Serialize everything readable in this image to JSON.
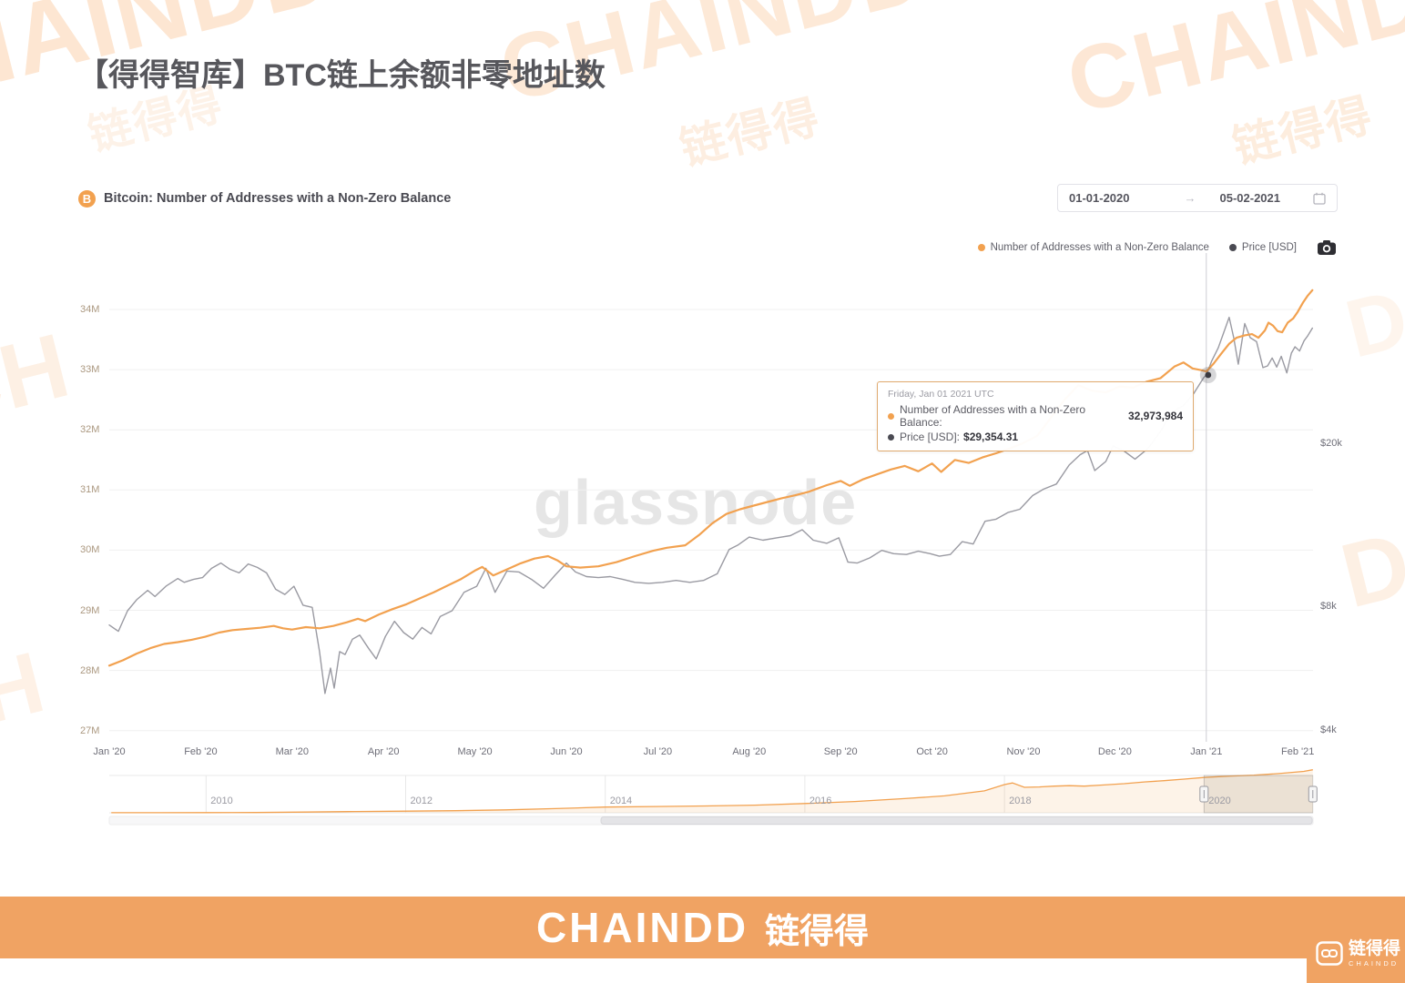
{
  "page": {
    "title": "【得得智库】BTC链上余额非零地址数"
  },
  "colors": {
    "accent_orange": "#F2A14F",
    "price_gray": "#9A9AA2",
    "dark_dot": "#4A4A52",
    "footer_orange": "#F0A363",
    "watermark_orange": "rgba(244,163,90,0.30)",
    "grid": "#f0f0f0"
  },
  "watermark": {
    "latin": "CHAINDD",
    "cjk": "链得得",
    "fragment_ch": "CH",
    "fragment_h": "H",
    "fragment_dd": "DD",
    "fragment_d": "D"
  },
  "chart_header": {
    "title": "Bitcoin: Number of Addresses with a Non-Zero Balance",
    "coin_symbol": "B"
  },
  "date_range": {
    "start": "01-01-2020",
    "arrow": "→",
    "end": "05-02-2021"
  },
  "legend": [
    {
      "label": "Number of Addresses with a Non-Zero Balance"
    },
    {
      "label": "Price [USD]"
    }
  ],
  "center_watermark": "glassnode",
  "tooltip": {
    "date": "Friday, Jan 01 2021 UTC",
    "rows": [
      {
        "label": "Number of Addresses with a Non-Zero Balance:",
        "value": "32,973,984"
      },
      {
        "label": "Price [USD]:",
        "value": "$29,354.31"
      }
    ]
  },
  "footer": {
    "brand_latin": "CHAINDD",
    "brand_cjk": "链得得"
  },
  "corner_logo": {
    "cjk": "链得得",
    "latin": "CHAINDD"
  },
  "chart_data": {
    "type": "line",
    "title": "Bitcoin: Number of Addresses with a Non-Zero Balance",
    "legend_position": "top-right",
    "grid": "horizontal-only",
    "x_axis": {
      "ticks": [
        "Jan '20",
        "Feb '20",
        "Mar '20",
        "Apr '20",
        "May '20",
        "Jun '20",
        "Jul '20",
        "Aug '20",
        "Sep '20",
        "Oct '20",
        "Nov '20",
        "Dec '20",
        "Jan '21",
        "Feb '21"
      ]
    },
    "y_axis_left": {
      "unit": "M addresses",
      "scale": "linear",
      "ticks": [
        34,
        33,
        32,
        31,
        30,
        29,
        28,
        27
      ],
      "suffix": "M"
    },
    "y_axis_right": {
      "unit": "USD",
      "scale": "log",
      "ticks": [
        {
          "label": "$20k",
          "value": 20000
        },
        {
          "label": "$8k",
          "value": 8000
        },
        {
          "label": "$4k",
          "value": 4000
        }
      ]
    },
    "crosshair": {
      "x_month": 12.0,
      "marker_price": 29354.31
    },
    "series": [
      {
        "name": "Number of Addresses with a Non-Zero Balance",
        "axis": "left",
        "unit": "millions",
        "points": [
          [
            0,
            28.08
          ],
          [
            0.15,
            28.17
          ],
          [
            0.3,
            28.28
          ],
          [
            0.45,
            28.37
          ],
          [
            0.6,
            28.44
          ],
          [
            0.75,
            28.47
          ],
          [
            0.9,
            28.51
          ],
          [
            1.05,
            28.56
          ],
          [
            1.2,
            28.63
          ],
          [
            1.35,
            28.67
          ],
          [
            1.5,
            28.69
          ],
          [
            1.65,
            28.71
          ],
          [
            1.8,
            28.74
          ],
          [
            1.9,
            28.7
          ],
          [
            2.0,
            28.68
          ],
          [
            2.15,
            28.72
          ],
          [
            2.3,
            28.7
          ],
          [
            2.45,
            28.74
          ],
          [
            2.6,
            28.8
          ],
          [
            2.72,
            28.86
          ],
          [
            2.8,
            28.82
          ],
          [
            2.95,
            28.93
          ],
          [
            3.1,
            29.02
          ],
          [
            3.25,
            29.1
          ],
          [
            3.4,
            29.2
          ],
          [
            3.55,
            29.3
          ],
          [
            3.7,
            29.41
          ],
          [
            3.85,
            29.52
          ],
          [
            4.0,
            29.66
          ],
          [
            4.08,
            29.72
          ],
          [
            4.2,
            29.58
          ],
          [
            4.35,
            29.68
          ],
          [
            4.5,
            29.78
          ],
          [
            4.65,
            29.86
          ],
          [
            4.8,
            29.9
          ],
          [
            4.9,
            29.83
          ],
          [
            5.0,
            29.73
          ],
          [
            5.15,
            29.71
          ],
          [
            5.35,
            29.73
          ],
          [
            5.55,
            29.8
          ],
          [
            5.75,
            29.9
          ],
          [
            5.95,
            29.99
          ],
          [
            6.1,
            30.04
          ],
          [
            6.3,
            30.08
          ],
          [
            6.45,
            30.25
          ],
          [
            6.6,
            30.45
          ],
          [
            6.75,
            30.6
          ],
          [
            6.9,
            30.68
          ],
          [
            7.05,
            30.74
          ],
          [
            7.2,
            30.8
          ],
          [
            7.35,
            30.86
          ],
          [
            7.5,
            30.91
          ],
          [
            7.65,
            30.97
          ],
          [
            7.85,
            31.08
          ],
          [
            8.0,
            31.15
          ],
          [
            8.1,
            31.07
          ],
          [
            8.25,
            31.18
          ],
          [
            8.4,
            31.26
          ],
          [
            8.55,
            31.34
          ],
          [
            8.7,
            31.4
          ],
          [
            8.85,
            31.31
          ],
          [
            9.0,
            31.44
          ],
          [
            9.1,
            31.3
          ],
          [
            9.25,
            31.5
          ],
          [
            9.4,
            31.45
          ],
          [
            9.55,
            31.54
          ],
          [
            9.7,
            31.61
          ],
          [
            9.85,
            31.69
          ],
          [
            10.0,
            31.78
          ],
          [
            10.15,
            31.9
          ],
          [
            10.3,
            32.2
          ],
          [
            10.45,
            32.5
          ],
          [
            10.6,
            32.74
          ],
          [
            10.75,
            32.65
          ],
          [
            10.9,
            32.62
          ],
          [
            11.05,
            32.72
          ],
          [
            11.2,
            32.7
          ],
          [
            11.35,
            32.8
          ],
          [
            11.5,
            32.86
          ],
          [
            11.65,
            33.05
          ],
          [
            11.75,
            33.12
          ],
          [
            11.85,
            33.02
          ],
          [
            11.95,
            32.99
          ],
          [
            12.0,
            32.97
          ],
          [
            12.08,
            33.1
          ],
          [
            12.16,
            33.26
          ],
          [
            12.25,
            33.43
          ],
          [
            12.33,
            33.53
          ],
          [
            12.42,
            33.57
          ],
          [
            12.5,
            33.59
          ],
          [
            12.57,
            33.53
          ],
          [
            12.64,
            33.65
          ],
          [
            12.68,
            33.78
          ],
          [
            12.73,
            33.73
          ],
          [
            12.78,
            33.64
          ],
          [
            12.83,
            33.62
          ],
          [
            12.89,
            33.78
          ],
          [
            12.95,
            33.85
          ],
          [
            13.0,
            33.96
          ],
          [
            13.06,
            34.12
          ],
          [
            13.11,
            34.23
          ],
          [
            13.16,
            34.32
          ]
        ]
      },
      {
        "name": "Price [USD]",
        "axis": "right",
        "unit": "USD",
        "points": [
          [
            0,
            7200
          ],
          [
            0.1,
            6950
          ],
          [
            0.2,
            7800
          ],
          [
            0.3,
            8300
          ],
          [
            0.42,
            8750
          ],
          [
            0.5,
            8450
          ],
          [
            0.62,
            8950
          ],
          [
            0.75,
            9350
          ],
          [
            0.82,
            9150
          ],
          [
            0.92,
            9300
          ],
          [
            1.02,
            9400
          ],
          [
            1.12,
            9900
          ],
          [
            1.22,
            10200
          ],
          [
            1.32,
            9850
          ],
          [
            1.42,
            9650
          ],
          [
            1.52,
            10150
          ],
          [
            1.62,
            9950
          ],
          [
            1.72,
            9650
          ],
          [
            1.82,
            8800
          ],
          [
            1.92,
            8550
          ],
          [
            2.02,
            8950
          ],
          [
            2.12,
            8050
          ],
          [
            2.22,
            7950
          ],
          [
            2.3,
            6200
          ],
          [
            2.36,
            4900
          ],
          [
            2.42,
            5650
          ],
          [
            2.46,
            5050
          ],
          [
            2.52,
            6200
          ],
          [
            2.58,
            6100
          ],
          [
            2.66,
            6650
          ],
          [
            2.74,
            6800
          ],
          [
            2.84,
            6300
          ],
          [
            2.92,
            5950
          ],
          [
            3.02,
            6750
          ],
          [
            3.12,
            7350
          ],
          [
            3.22,
            6900
          ],
          [
            3.32,
            6650
          ],
          [
            3.42,
            7100
          ],
          [
            3.52,
            6850
          ],
          [
            3.62,
            7550
          ],
          [
            3.75,
            7800
          ],
          [
            3.88,
            8650
          ],
          [
            4.02,
            8950
          ],
          [
            4.12,
            9900
          ],
          [
            4.22,
            8650
          ],
          [
            4.35,
            9750
          ],
          [
            4.48,
            9700
          ],
          [
            4.62,
            9300
          ],
          [
            4.75,
            8850
          ],
          [
            4.88,
            9550
          ],
          [
            5.0,
            10200
          ],
          [
            5.1,
            9700
          ],
          [
            5.22,
            9450
          ],
          [
            5.35,
            9400
          ],
          [
            5.48,
            9450
          ],
          [
            5.62,
            9300
          ],
          [
            5.75,
            9150
          ],
          [
            5.9,
            9100
          ],
          [
            6.05,
            9150
          ],
          [
            6.2,
            9250
          ],
          [
            6.35,
            9150
          ],
          [
            6.5,
            9250
          ],
          [
            6.65,
            9600
          ],
          [
            6.78,
            11000
          ],
          [
            6.88,
            11300
          ],
          [
            7.0,
            11800
          ],
          [
            7.15,
            11600
          ],
          [
            7.3,
            11750
          ],
          [
            7.45,
            11900
          ],
          [
            7.58,
            12300
          ],
          [
            7.7,
            11600
          ],
          [
            7.85,
            11400
          ],
          [
            7.98,
            11750
          ],
          [
            8.08,
            10250
          ],
          [
            8.18,
            10200
          ],
          [
            8.32,
            10500
          ],
          [
            8.45,
            10950
          ],
          [
            8.58,
            10750
          ],
          [
            8.72,
            10700
          ],
          [
            8.85,
            10900
          ],
          [
            8.98,
            10750
          ],
          [
            9.08,
            10600
          ],
          [
            9.2,
            10700
          ],
          [
            9.33,
            11500
          ],
          [
            9.45,
            11350
          ],
          [
            9.58,
            12900
          ],
          [
            9.7,
            13050
          ],
          [
            9.83,
            13550
          ],
          [
            9.96,
            13800
          ],
          [
            10.1,
            14900
          ],
          [
            10.22,
            15450
          ],
          [
            10.36,
            15900
          ],
          [
            10.5,
            17700
          ],
          [
            10.62,
            18750
          ],
          [
            10.7,
            19200
          ],
          [
            10.78,
            17150
          ],
          [
            10.9,
            18050
          ],
          [
            10.98,
            19700
          ],
          [
            11.1,
            19150
          ],
          [
            11.22,
            18300
          ],
          [
            11.36,
            19400
          ],
          [
            11.5,
            21400
          ],
          [
            11.62,
            23800
          ],
          [
            11.75,
            24700
          ],
          [
            11.86,
            26400
          ],
          [
            11.97,
            28900
          ],
          [
            12.0,
            29354
          ],
          [
            12.06,
            31800
          ],
          [
            12.13,
            34200
          ],
          [
            12.2,
            37800
          ],
          [
            12.25,
            40600
          ],
          [
            12.3,
            36200
          ],
          [
            12.35,
            31200
          ],
          [
            12.42,
            39200
          ],
          [
            12.48,
            36200
          ],
          [
            12.55,
            35400
          ],
          [
            12.62,
            30600
          ],
          [
            12.67,
            30900
          ],
          [
            12.72,
            32300
          ],
          [
            12.77,
            30700
          ],
          [
            12.82,
            32600
          ],
          [
            12.88,
            29700
          ],
          [
            12.93,
            33200
          ],
          [
            12.97,
            34400
          ],
          [
            13.02,
            33600
          ],
          [
            13.07,
            35600
          ],
          [
            13.11,
            36600
          ],
          [
            13.16,
            38200
          ]
        ]
      }
    ],
    "minimap": {
      "year_ticks": [
        2010,
        2012,
        2014,
        2016,
        2018,
        2020
      ],
      "selection_years": [
        2020.0,
        2021.09
      ],
      "series_name": "Number of Addresses with a Non-Zero Balance (full history, millions)",
      "points": [
        [
          2009.05,
          0.05
        ],
        [
          2009.5,
          0.06
        ],
        [
          2010,
          0.12
        ],
        [
          2010.5,
          0.25
        ],
        [
          2011,
          0.6
        ],
        [
          2011.5,
          1.0
        ],
        [
          2012,
          1.3
        ],
        [
          2012.5,
          1.7
        ],
        [
          2013,
          2.3
        ],
        [
          2013.5,
          3.3
        ],
        [
          2014,
          4.6
        ],
        [
          2014.5,
          5.0
        ],
        [
          2015,
          5.4
        ],
        [
          2015.5,
          6.1
        ],
        [
          2016,
          7.4
        ],
        [
          2016.5,
          9.0
        ],
        [
          2017,
          11.3
        ],
        [
          2017.4,
          13.5
        ],
        [
          2017.8,
          17.5
        ],
        [
          2018.0,
          22.5
        ],
        [
          2018.08,
          23.8
        ],
        [
          2018.2,
          20.3
        ],
        [
          2018.35,
          20.6
        ],
        [
          2018.5,
          21.2
        ],
        [
          2018.65,
          21.6
        ],
        [
          2018.8,
          21.2
        ],
        [
          2019.0,
          22.2
        ],
        [
          2019.2,
          23.2
        ],
        [
          2019.4,
          24.6
        ],
        [
          2019.6,
          25.6
        ],
        [
          2019.8,
          26.8
        ],
        [
          2020.0,
          28.1
        ],
        [
          2020.25,
          29.2
        ],
        [
          2020.5,
          29.9
        ],
        [
          2020.75,
          31.2
        ],
        [
          2021.0,
          33.0
        ],
        [
          2021.09,
          34.3
        ]
      ]
    }
  }
}
